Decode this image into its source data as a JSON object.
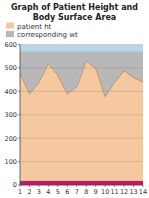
{
  "chart_data": {
    "type": "area",
    "title": "Graph of Patient Height and\nBody Surface Area",
    "x": [
      1,
      2,
      3,
      4,
      5,
      6,
      7,
      8,
      9,
      10,
      11,
      12,
      13,
      14
    ],
    "series": [
      {
        "color": "#cc1166",
        "values": [
          18,
          18,
          18,
          18,
          18,
          18,
          18,
          18,
          18,
          18,
          18,
          18,
          18,
          18
        ]
      },
      {
        "name": "patient ht",
        "color": "#f5c8a0",
        "values": [
          480,
          390,
          440,
          520,
          470,
          390,
          420,
          530,
          500,
          380,
          440,
          490,
          460,
          440
        ]
      },
      {
        "name": "corresponding wt",
        "color": "#b8b8b8",
        "values": [
          570,
          570,
          570,
          570,
          570,
          570,
          570,
          570,
          570,
          570,
          570,
          570,
          570,
          570
        ]
      }
    ],
    "xlim": [
      1,
      14
    ],
    "xticks": [
      1,
      2,
      3,
      4,
      5,
      6,
      7,
      8,
      9,
      10,
      11,
      12,
      13,
      14
    ],
    "ylim": [
      0,
      600
    ],
    "yticks": [
      0,
      100,
      200,
      300,
      400,
      500,
      600
    ],
    "grid": true,
    "legend": "top"
  }
}
